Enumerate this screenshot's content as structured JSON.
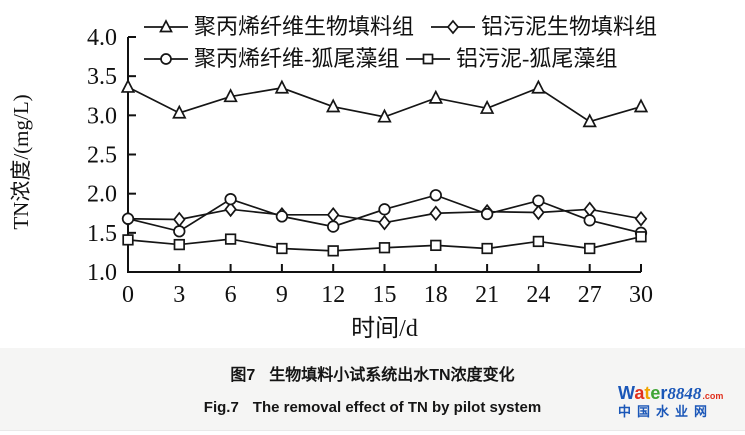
{
  "chart_data": {
    "type": "line",
    "title": "",
    "xlabel": "时间/d",
    "ylabel": "TN浓度/(mg/L)",
    "x": [
      0,
      3,
      6,
      9,
      12,
      15,
      18,
      21,
      24,
      27,
      30
    ],
    "xlim": [
      0,
      30
    ],
    "ylim": [
      1.0,
      4.0
    ],
    "y_ticks": [
      1.0,
      1.5,
      2.0,
      2.5,
      3.0,
      3.5,
      4.0
    ],
    "grid": false,
    "legend_position": "top",
    "line_color": "#151515",
    "marker_fill": "#ffffff",
    "series": [
      {
        "name": "聚丙烯纤维生物填料组",
        "marker": "triangle",
        "values": [
          3.36,
          3.03,
          3.24,
          3.35,
          3.11,
          2.98,
          3.22,
          3.09,
          3.35,
          2.92,
          3.11
        ]
      },
      {
        "name": "铝污泥生物填料组",
        "marker": "diamond",
        "values": [
          1.68,
          1.67,
          1.8,
          1.73,
          1.73,
          1.63,
          1.75,
          1.77,
          1.76,
          1.8,
          1.68
        ]
      },
      {
        "name": "聚丙烯纤维-狐尾藻组",
        "marker": "circle",
        "values": [
          1.68,
          1.52,
          1.93,
          1.71,
          1.58,
          1.8,
          1.98,
          1.74,
          1.91,
          1.66,
          1.5
        ]
      },
      {
        "name": "铝污泥-狐尾藻组",
        "marker": "square",
        "values": [
          1.41,
          1.35,
          1.42,
          1.3,
          1.27,
          1.31,
          1.34,
          1.3,
          1.39,
          1.3,
          1.45
        ]
      }
    ]
  },
  "caption": {
    "zh_label": "图7",
    "zh_text": "生物填料小试系统出水TN浓度变化",
    "en_label": "Fig.7",
    "en_text": "The removal effect of TN by pilot system"
  },
  "logo": {
    "letters": [
      [
        "W",
        "#1b57b8"
      ],
      [
        "a",
        "#e0301e"
      ],
      [
        "t",
        "#f0a500"
      ],
      [
        "e",
        "#3fa535"
      ],
      [
        "r",
        "#1b57b8"
      ]
    ],
    "number": "8848",
    "number_color": "#1b57b8",
    "tld": ".com",
    "tld_color": "#e0301e",
    "line2": "中国水业网",
    "line2_color": "#1b57b8"
  }
}
